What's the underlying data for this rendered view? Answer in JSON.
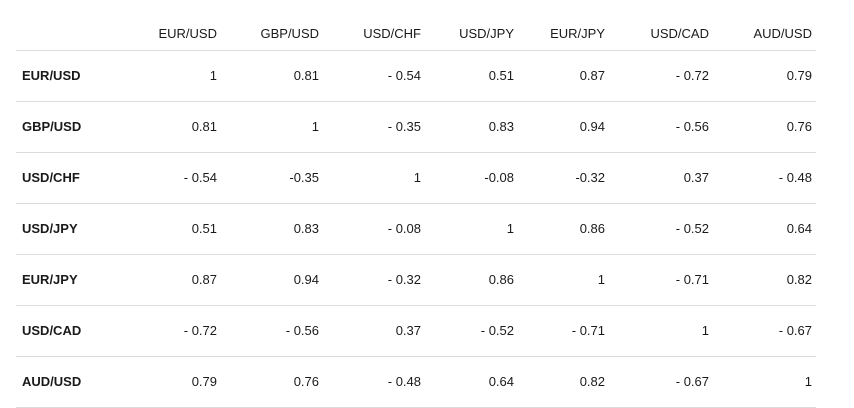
{
  "table": {
    "columns": [
      "EUR/USD",
      "GBP/USD",
      "USD/CHF",
      "USD/JPY",
      "EUR/JPY",
      "USD/CAD",
      "AUD/USD"
    ],
    "rows": [
      {
        "label": "EUR/USD",
        "values": [
          "1",
          "0.81",
          "- 0.54",
          "0.51",
          "0.87",
          "- 0.72",
          "0.79"
        ]
      },
      {
        "label": "GBP/USD",
        "values": [
          "0.81",
          "1",
          "- 0.35",
          "0.83",
          "0.94",
          "- 0.56",
          "0.76"
        ]
      },
      {
        "label": "USD/CHF",
        "values": [
          "- 0.54",
          "-0.35",
          "1",
          "-0.08",
          "-0.32",
          "0.37",
          "- 0.48"
        ]
      },
      {
        "label": "USD/JPY",
        "values": [
          "0.51",
          "0.83",
          "- 0.08",
          "1",
          "0.86",
          "- 0.52",
          "0.64"
        ]
      },
      {
        "label": "EUR/JPY",
        "values": [
          "0.87",
          "0.94",
          "- 0.32",
          "0.86",
          "1",
          "- 0.71",
          "0.82"
        ]
      },
      {
        "label": "USD/CAD",
        "values": [
          "- 0.72",
          "- 0.56",
          "0.37",
          "- 0.52",
          "- 0.71",
          "1",
          "- 0.67"
        ]
      },
      {
        "label": "AUD/USD",
        "values": [
          "0.79",
          "0.76",
          "- 0.48",
          "0.64",
          "0.82",
          "- 0.67",
          "1"
        ]
      }
    ]
  }
}
